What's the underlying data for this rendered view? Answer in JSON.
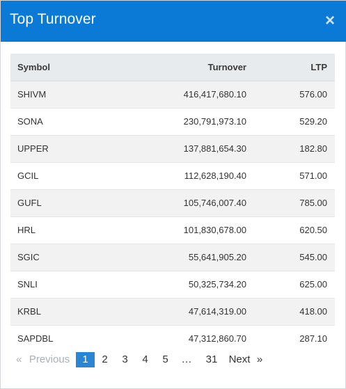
{
  "modal": {
    "title": "Top Turnover",
    "close_symbol": "×"
  },
  "table": {
    "headers": {
      "symbol": "Symbol",
      "turnover": "Turnover",
      "ltp": "LTP"
    },
    "rows": [
      {
        "symbol": "SHIVM",
        "turnover": "416,417,680.10",
        "ltp": "576.00"
      },
      {
        "symbol": "SONA",
        "turnover": "230,791,973.10",
        "ltp": "529.20"
      },
      {
        "symbol": "UPPER",
        "turnover": "137,881,654.30",
        "ltp": "182.80"
      },
      {
        "symbol": "GCIL",
        "turnover": "112,628,190.40",
        "ltp": "571.00"
      },
      {
        "symbol": "GUFL",
        "turnover": "105,746,007.40",
        "ltp": "785.00"
      },
      {
        "symbol": "HRL",
        "turnover": "101,830,678.00",
        "ltp": "620.50"
      },
      {
        "symbol": "SGIC",
        "turnover": "55,641,905.20",
        "ltp": "545.00"
      },
      {
        "symbol": "SNLI",
        "turnover": "50,325,734.20",
        "ltp": "625.00"
      },
      {
        "symbol": "KRBL",
        "turnover": "47,614,319.00",
        "ltp": "418.00"
      },
      {
        "symbol": "SAPDBL",
        "turnover": "47,312,860.70",
        "ltp": "287.10"
      }
    ]
  },
  "pagination": {
    "prev_arrow": "«",
    "prev_label": "Previous",
    "pages": [
      "1",
      "2",
      "3",
      "4",
      "5"
    ],
    "ellipsis": "…",
    "last_page": "31",
    "next_label": "Next",
    "next_arrow": "»",
    "current_page": "1"
  },
  "colors": {
    "header_bg": "#0a7ad6",
    "active_page": "#2a85d4",
    "table_head_bg": "#e8ebee",
    "row_stripe": "#f2f2f2"
  }
}
